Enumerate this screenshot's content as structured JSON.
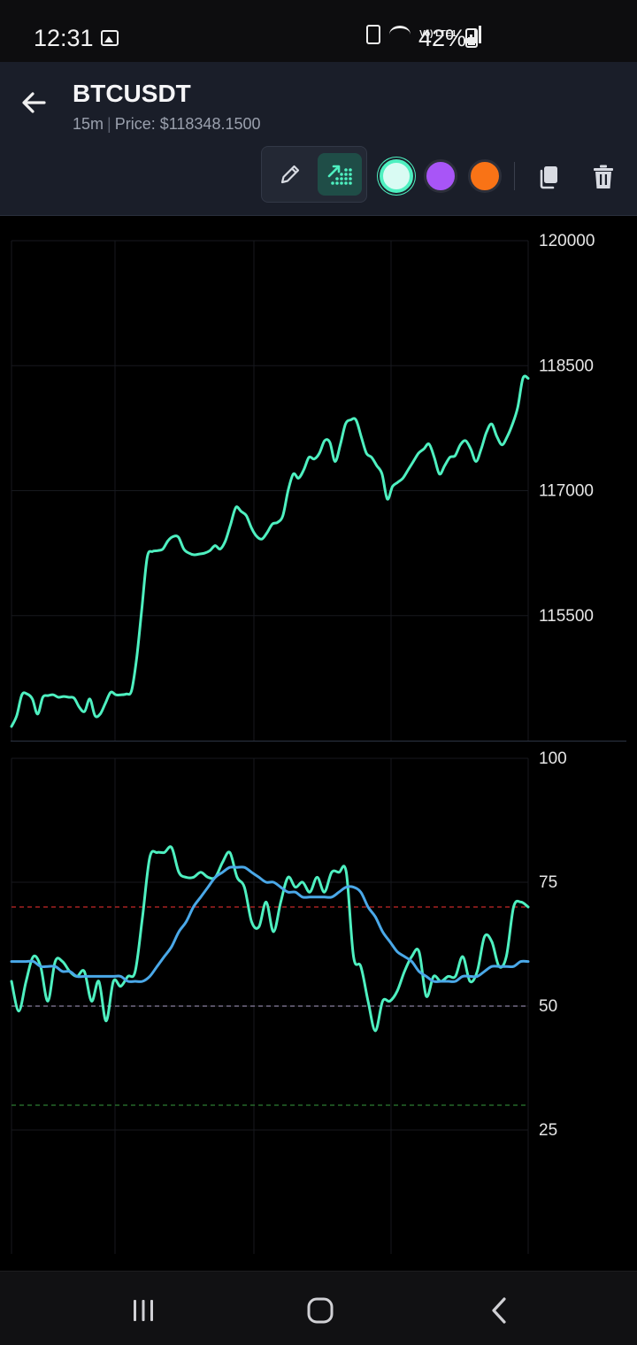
{
  "status_bar": {
    "time": "12:31",
    "lte_label": "Vo) LTE1",
    "battery": "42%",
    "icons": [
      "gallery-icon",
      "battery-saver-icon",
      "wifi-icon",
      "lte-icon",
      "signal-icon",
      "battery-icon"
    ]
  },
  "header": {
    "title": "BTCUSDT",
    "timeframe": "15m",
    "separator": "|",
    "price_label": "Price: $118348.1500"
  },
  "toolbar": {
    "tools": [
      "pencil-icon",
      "trend-indicator-icon"
    ],
    "colors": [
      "#4ef0c0",
      "#a855f7",
      "#f97316"
    ],
    "actions": [
      "copy-icon",
      "trash-icon"
    ]
  },
  "chart_data": [
    {
      "type": "line",
      "ylim": [
        114000,
        120000
      ],
      "ticks": [
        120000,
        118500,
        117000,
        115500
      ],
      "tick_labels": [
        "120000",
        "118500",
        "117000",
        "115500"
      ],
      "grid": true,
      "series": [
        {
          "color": "#4ef0c0",
          "values": [
            114170,
            114300,
            114550,
            114560,
            114500,
            114320,
            114520,
            114540,
            114550,
            114520,
            114530,
            114520,
            114510,
            114400,
            114350,
            114500,
            114300,
            114320,
            114450,
            114580,
            114550,
            114550,
            114560,
            114600,
            115000,
            115600,
            116200,
            116270,
            116280,
            116300,
            116400,
            116450,
            116440,
            116300,
            116250,
            116230,
            116240,
            116250,
            116280,
            116340,
            116300,
            116400,
            116600,
            116800,
            116750,
            116700,
            116550,
            116450,
            116420,
            116500,
            116600,
            116620,
            116700,
            117000,
            117200,
            117150,
            117250,
            117400,
            117380,
            117450,
            117600,
            117580,
            117350,
            117550,
            117800,
            117850,
            117850,
            117650,
            117450,
            117400,
            117300,
            117200,
            116900,
            117050,
            117100,
            117150,
            117250,
            117350,
            117450,
            117500,
            117560,
            117400,
            117200,
            117300,
            117400,
            117420,
            117550,
            117600,
            117500,
            117350,
            117500,
            117700,
            117800,
            117650,
            117550,
            117650,
            117800,
            118000,
            118350,
            118348
          ]
        }
      ]
    },
    {
      "type": "line",
      "ylim": [
        0,
        100
      ],
      "ticks": [
        100,
        75,
        50,
        25
      ],
      "tick_labels": [
        "100",
        "75",
        "50",
        "25"
      ],
      "reference_lines": [
        {
          "value": 70,
          "color": "#c62828"
        },
        {
          "value": 50,
          "color": "#8a7fa0"
        },
        {
          "value": 30,
          "color": "#2e7d32"
        }
      ],
      "grid": true,
      "series": [
        {
          "color": "#4ef0c0",
          "values": [
            55,
            49,
            55,
            60,
            58,
            51,
            59,
            59,
            57,
            56,
            57,
            51,
            55,
            47,
            55,
            54,
            56,
            57,
            68,
            80,
            81,
            81,
            82,
            77,
            76,
            76,
            77,
            76,
            76,
            79,
            81,
            76,
            74,
            67,
            66,
            71,
            65,
            71,
            76,
            74,
            75,
            73,
            76,
            73,
            77,
            77,
            77,
            60,
            58,
            51,
            45,
            51,
            51,
            53,
            57,
            60,
            61,
            52,
            56,
            55,
            56,
            56,
            60,
            55,
            57,
            64,
            63,
            58,
            60,
            70,
            71,
            70
          ]
        },
        {
          "color": "#4aa8e8",
          "values": [
            59,
            59,
            59,
            59,
            58,
            58,
            58,
            57,
            57,
            56,
            56,
            56,
            56,
            56,
            56,
            56,
            55,
            55,
            55,
            56,
            58,
            60,
            62,
            65,
            67,
            70,
            72,
            74,
            76,
            77,
            78,
            78,
            78,
            77,
            76,
            75,
            75,
            74,
            73,
            73,
            72,
            72,
            72,
            72,
            72,
            73,
            74,
            74,
            73,
            70,
            68,
            65,
            63,
            61,
            60,
            59,
            57,
            56,
            55,
            55,
            55,
            55,
            56,
            56,
            56,
            57,
            58,
            58,
            58,
            58,
            59,
            59
          ]
        }
      ]
    }
  ],
  "nav": {
    "buttons": [
      "recents-icon",
      "home-icon",
      "back-icon"
    ]
  }
}
